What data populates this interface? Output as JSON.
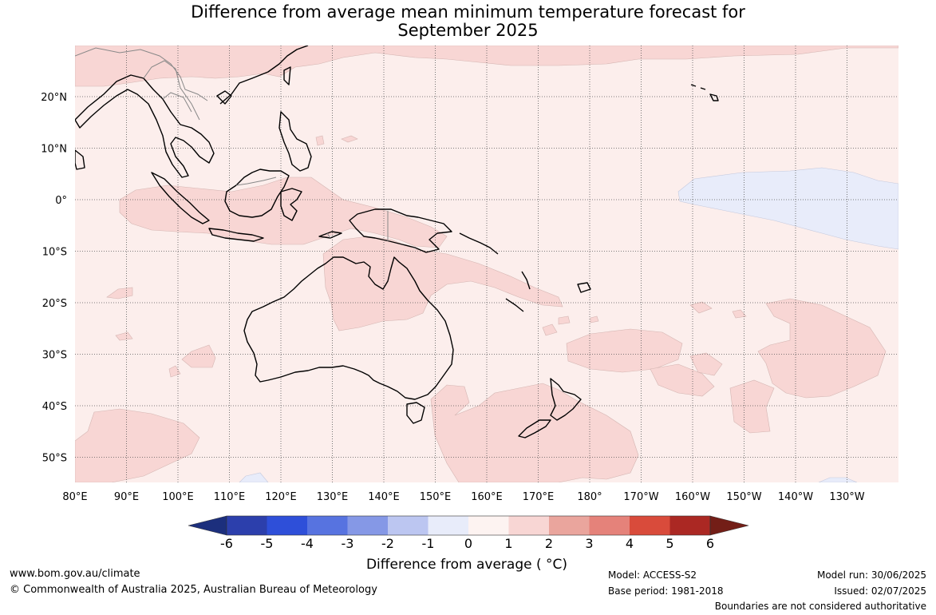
{
  "title": {
    "line1": "Difference from average mean minimum temperature forecast for",
    "line2": "September 2025"
  },
  "map": {
    "lon_labels": [
      "80°E",
      "90°E",
      "100°E",
      "110°E",
      "120°E",
      "130°E",
      "140°E",
      "150°E",
      "160°E",
      "170°E",
      "180°",
      "170°W",
      "160°W",
      "150°W",
      "140°W",
      "130°W"
    ],
    "lat_labels": [
      "20°N",
      "10°N",
      "0°",
      "10°S",
      "20°S",
      "30°S",
      "40°S",
      "50°S"
    ],
    "lon_range": [
      "80°E",
      "120°W"
    ],
    "lat_range": [
      "30°N",
      "55°S"
    ],
    "gridlines": "dotted",
    "ocean_color": "#fceeec",
    "anomaly_0_1_color": "#fceeec",
    "anomaly_1_2_color": "#f8d6d4",
    "anomaly_neg1_0_color": "#e8ecfa",
    "coastline_color": "#000000",
    "border_color": "#888888"
  },
  "colorbar": {
    "label": "Difference from average ( °C)",
    "ticks": [
      "-6",
      "-5",
      "-4",
      "-3",
      "-2",
      "-1",
      "0",
      "1",
      "2",
      "3",
      "4",
      "5",
      "6"
    ],
    "colors": [
      "#1c2f7d",
      "#2c3fac",
      "#2e4fd9",
      "#5773e0",
      "#8598e6",
      "#bcc6f1",
      "#e8ecfa",
      "#fdf3f1",
      "#f8d6d4",
      "#eaa59d",
      "#e5827a",
      "#d94b3b",
      "#ab2823",
      "#731e17"
    ]
  },
  "footer": {
    "website": "www.bom.gov.au/climate",
    "copyright": "© Commonwealth of Australia 2025, Australian Bureau of Meteorology",
    "model": "Model: ACCESS-S2",
    "base_period": "Base period: 1981-2018",
    "model_run": "Model run: 30/06/2025",
    "issued": "Issued: 02/07/2025",
    "disclaimer": "Boundaries are not considered authoritative"
  }
}
